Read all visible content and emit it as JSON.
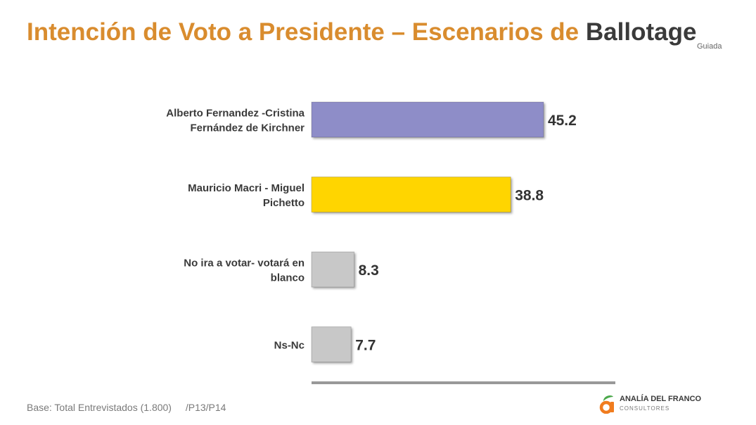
{
  "header": {
    "title_accent": "Intención de Voto a Presidente – Escenarios de",
    "title_dark": "Ballotage",
    "tag": "Guiada"
  },
  "chart_data": {
    "type": "bar",
    "orientation": "horizontal",
    "categories": [
      [
        "Alberto Fernandez -Cristina",
        "Fernández de Kirchner"
      ],
      [
        "Mauricio Macri - Miguel",
        "Pichetto"
      ],
      [
        "No ira a votar- votará en",
        "blanco"
      ],
      [
        "Ns-Nc"
      ]
    ],
    "values": [
      45.2,
      38.8,
      8.3,
      7.7
    ],
    "colors": [
      "#8e8dc8",
      "#ffd500",
      "#c8c8c8",
      "#c8c8c8"
    ],
    "xlim": [
      0,
      100
    ],
    "grid": false,
    "legend": "none"
  },
  "footer": {
    "base": "Base: Total Entrevistados (1.800)",
    "ref": "/P13/P14"
  },
  "logo": {
    "name": "ANALÍA DEL FRANCO",
    "sub": "CONSULTORES",
    "colors": {
      "orange": "#f07c1e",
      "green": "#4aa84a"
    }
  }
}
